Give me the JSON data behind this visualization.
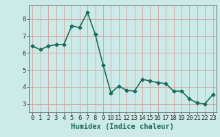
{
  "x": [
    0,
    1,
    2,
    3,
    4,
    5,
    6,
    7,
    8,
    9,
    10,
    11,
    12,
    13,
    14,
    15,
    16,
    17,
    18,
    19,
    20,
    21,
    22,
    23
  ],
  "y": [
    6.4,
    6.2,
    6.4,
    6.5,
    6.5,
    7.6,
    7.5,
    8.4,
    7.1,
    5.3,
    3.65,
    4.05,
    3.8,
    3.75,
    4.45,
    4.35,
    4.25,
    4.2,
    3.75,
    3.75,
    3.3,
    3.05,
    3.0,
    3.55
  ],
  "line_color": "#1a6b5a",
  "marker": "D",
  "marker_size": 2.5,
  "bg_color": "#cceae7",
  "grid_color": "#d4a0a0",
  "xlabel": "Humidex (Indice chaleur)",
  "xlim": [
    -0.5,
    23.5
  ],
  "ylim": [
    2.5,
    8.8
  ],
  "yticks": [
    3,
    4,
    5,
    6,
    7,
    8
  ],
  "xticks": [
    0,
    1,
    2,
    3,
    4,
    5,
    6,
    7,
    8,
    9,
    10,
    11,
    12,
    13,
    14,
    15,
    16,
    17,
    18,
    19,
    20,
    21,
    22,
    23
  ],
  "xlabel_fontsize": 7.5,
  "tick_fontsize": 6.5,
  "linewidth": 1.2
}
